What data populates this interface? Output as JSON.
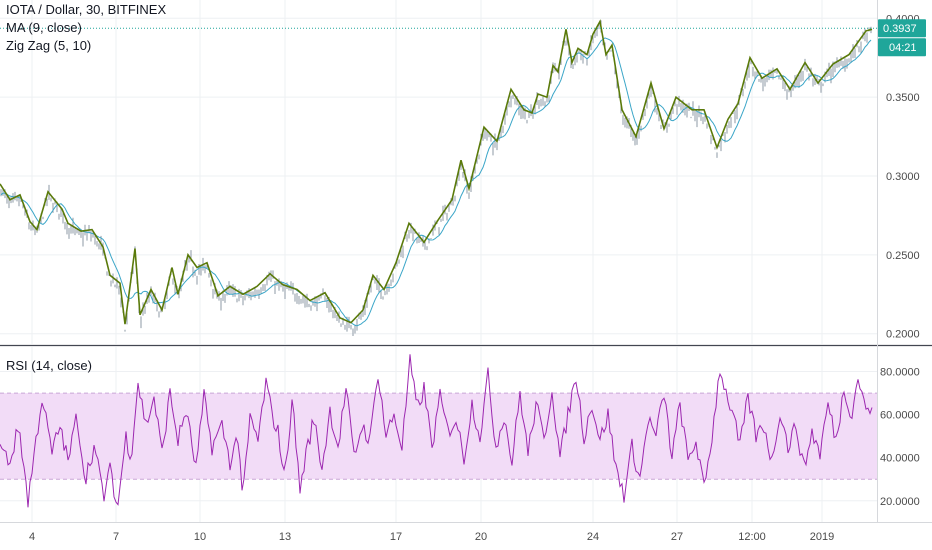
{
  "legend": {
    "symbol": "IOTA / Dollar, 30, BITFINEX",
    "ma": "MA (9, close)",
    "zigzag": "Zig Zag (5, 10)",
    "rsi": "RSI (14, close)"
  },
  "price_badge": {
    "price": "0.3937",
    "countdown": "04:21"
  },
  "colors": {
    "zigzag": "#5a7a0a",
    "candles": "#8d9aa6",
    "ma": "#3ba6c8",
    "rsi": "#9c27b0",
    "rsi_band": "#f2dcf7",
    "badge": "#1fa69a",
    "grid": "#eef0f3"
  },
  "chart_data": [
    {
      "type": "line",
      "series": [
        {
          "name": "Zig Zag (5, 10)",
          "x": [
            0,
            10,
            20,
            30,
            37,
            48,
            62,
            68,
            81,
            92,
            103,
            110,
            120,
            125,
            135,
            140,
            151,
            162,
            172,
            178,
            188,
            197,
            207,
            218,
            230,
            243,
            257,
            270,
            283,
            297,
            310,
            325,
            340,
            351,
            363,
            373,
            384,
            396,
            409,
            424,
            438,
            452,
            461,
            469,
            484,
            497,
            511,
            524,
            532,
            538,
            547,
            553,
            558,
            566,
            572,
            578,
            587,
            593,
            600,
            606,
            612,
            622,
            636,
            651,
            664,
            676,
            692,
            704,
            717,
            728,
            738,
            750,
            762,
            777,
            790,
            805,
            818,
            833,
            849,
            866,
            872
          ],
          "values": [
            0.295,
            0.285,
            0.288,
            0.271,
            0.266,
            0.29,
            0.279,
            0.27,
            0.265,
            0.266,
            0.255,
            0.237,
            0.232,
            0.206,
            0.254,
            0.212,
            0.228,
            0.215,
            0.242,
            0.225,
            0.25,
            0.242,
            0.245,
            0.224,
            0.23,
            0.225,
            0.23,
            0.238,
            0.231,
            0.228,
            0.221,
            0.226,
            0.21,
            0.207,
            0.215,
            0.237,
            0.228,
            0.245,
            0.27,
            0.258,
            0.272,
            0.285,
            0.31,
            0.292,
            0.331,
            0.322,
            0.355,
            0.342,
            0.34,
            0.352,
            0.35,
            0.37,
            0.366,
            0.393,
            0.372,
            0.381,
            0.377,
            0.39,
            0.398,
            0.377,
            0.383,
            0.342,
            0.325,
            0.359,
            0.33,
            0.35,
            0.342,
            0.342,
            0.318,
            0.336,
            0.346,
            0.375,
            0.362,
            0.368,
            0.355,
            0.372,
            0.359,
            0.371,
            0.377,
            0.392,
            0.393
          ]
        }
      ],
      "x_tick_labels": [
        "4",
        "7",
        "10",
        "13",
        "17",
        "20",
        "24",
        "27",
        "12:00",
        "2019"
      ],
      "y_tick_labels": [
        "0.4000",
        "0.3500",
        "0.3000",
        "0.2500",
        "0.2000"
      ],
      "ylim": [
        0.196,
        0.404
      ]
    },
    {
      "type": "line",
      "series": [
        {
          "name": "RSI (14, close)",
          "x": [
            0,
            10,
            19,
            28,
            36,
            42,
            52,
            60,
            68,
            77,
            85,
            94,
            104,
            111,
            117,
            126,
            131,
            138,
            146,
            154,
            162,
            170,
            178,
            186,
            196,
            204,
            212,
            222,
            230,
            238,
            243,
            250,
            258,
            266,
            272,
            278,
            285,
            292,
            300,
            306,
            314,
            322,
            330,
            338,
            346,
            354,
            362,
            370,
            378,
            386,
            394,
            402,
            410,
            417,
            424,
            432,
            440,
            448,
            456,
            464,
            472,
            480,
            488,
            496,
            504,
            512,
            520,
            528,
            536,
            544,
            552,
            560,
            568,
            576,
            584,
            592,
            600,
            608,
            616,
            624,
            632,
            640,
            648,
            656,
            664,
            672,
            680,
            688,
            696,
            704,
            712,
            720,
            726,
            732,
            740,
            748,
            756,
            764,
            772,
            780,
            788,
            796,
            804,
            812,
            820,
            828,
            836,
            844,
            852,
            858,
            864,
            872
          ],
          "values": [
            45,
            38,
            55,
            20,
            48,
            68,
            42,
            55,
            38,
            60,
            30,
            45,
            22,
            36,
            15,
            50,
            40,
            75,
            55,
            68,
            42,
            70,
            48,
            62,
            35,
            68,
            45,
            55,
            38,
            50,
            21,
            58,
            48,
            75,
            60,
            52,
            30,
            68,
            25,
            42,
            58,
            35,
            62,
            45,
            72,
            40,
            55,
            48,
            80,
            50,
            60,
            45,
            85,
            62,
            72,
            45,
            68,
            52,
            58,
            40,
            65,
            50,
            78,
            45,
            60,
            38,
            70,
            42,
            65,
            48,
            72,
            40,
            60,
            78,
            50,
            65,
            48,
            60,
            35,
            23,
            45,
            30,
            58,
            50,
            70,
            40,
            65,
            38,
            48,
            25,
            50,
            82,
            70,
            62,
            45,
            68,
            50,
            55,
            38,
            62,
            45,
            55,
            35,
            52,
            42,
            65,
            48,
            72,
            60,
            78,
            65,
            60
          ],
          "reference_lines": [
            70,
            30
          ]
        }
      ],
      "y_tick_labels": [
        "80.0000",
        "60.0000",
        "40.0000",
        "20.0000"
      ],
      "ylim": [
        12,
        90
      ]
    }
  ]
}
